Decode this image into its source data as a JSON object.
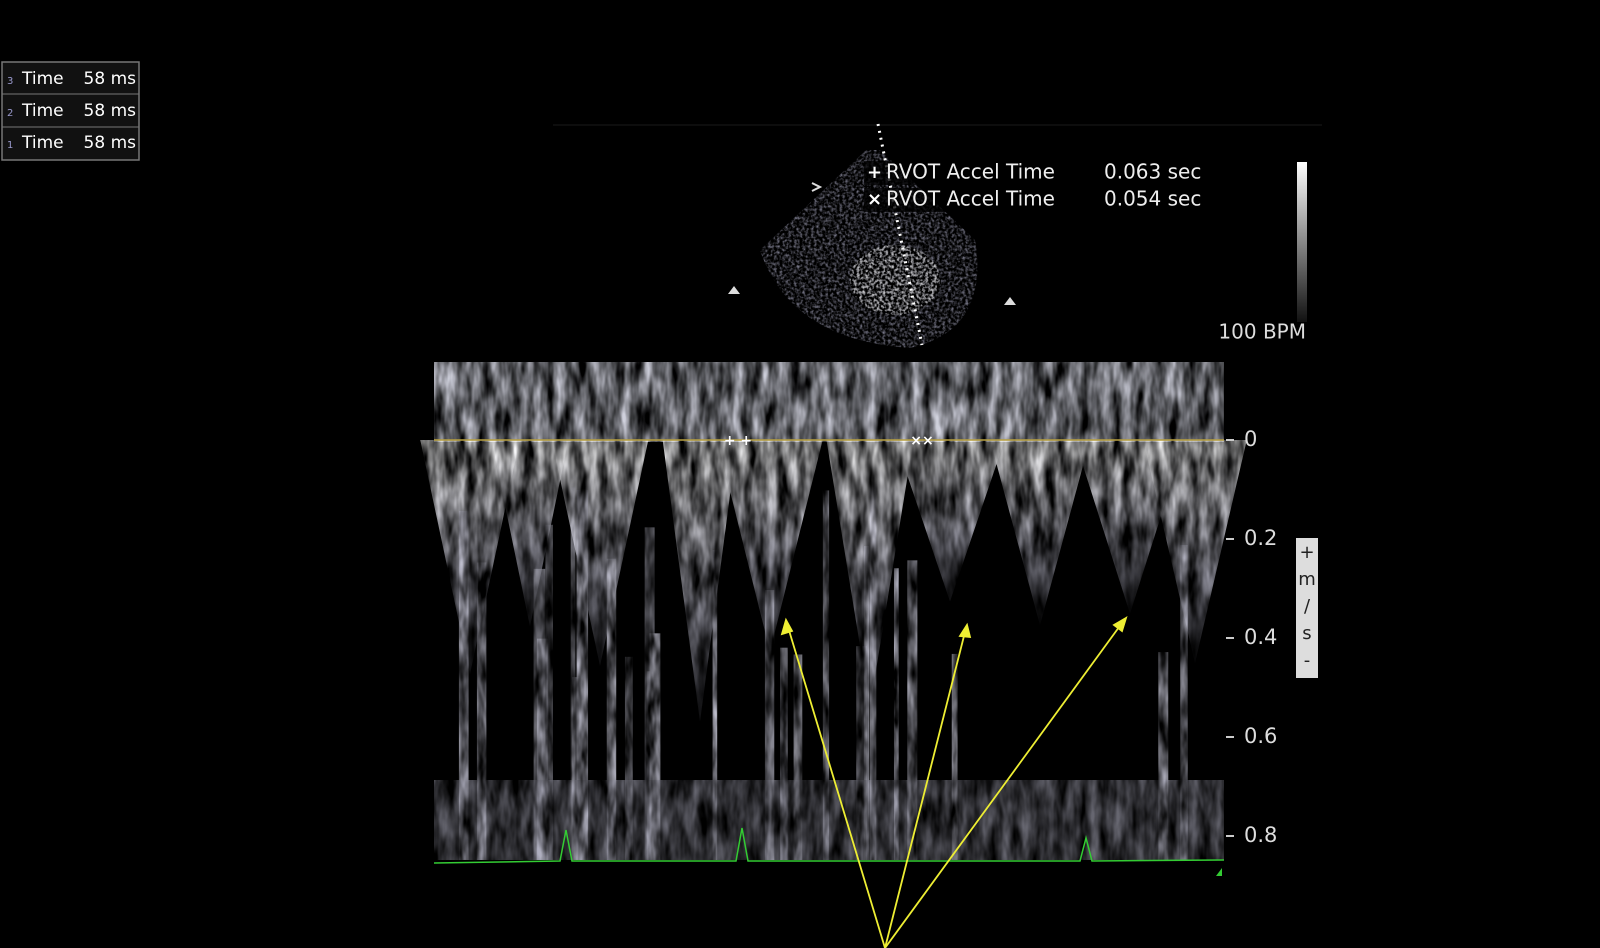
{
  "measurements": [
    {
      "index": "3",
      "label": "Time",
      "value": "58 ms"
    },
    {
      "index": "2",
      "label": "Time",
      "value": "58 ms"
    },
    {
      "index": "1",
      "label": "Time",
      "value": "58 ms"
    }
  ],
  "rvot": [
    {
      "symbol": "+",
      "label": "RVOT Accel Time",
      "value": "0.063 sec"
    },
    {
      "symbol": "×",
      "label": "RVOT Accel Time",
      "value": "0.054 sec"
    }
  ],
  "heart_rate": "100 BPM",
  "velocity_scale": {
    "ticks": [
      "0",
      "0.2",
      "0.4",
      "0.6",
      "0.8"
    ],
    "unit": [
      "+",
      "m",
      "/",
      "s",
      "-"
    ]
  }
}
